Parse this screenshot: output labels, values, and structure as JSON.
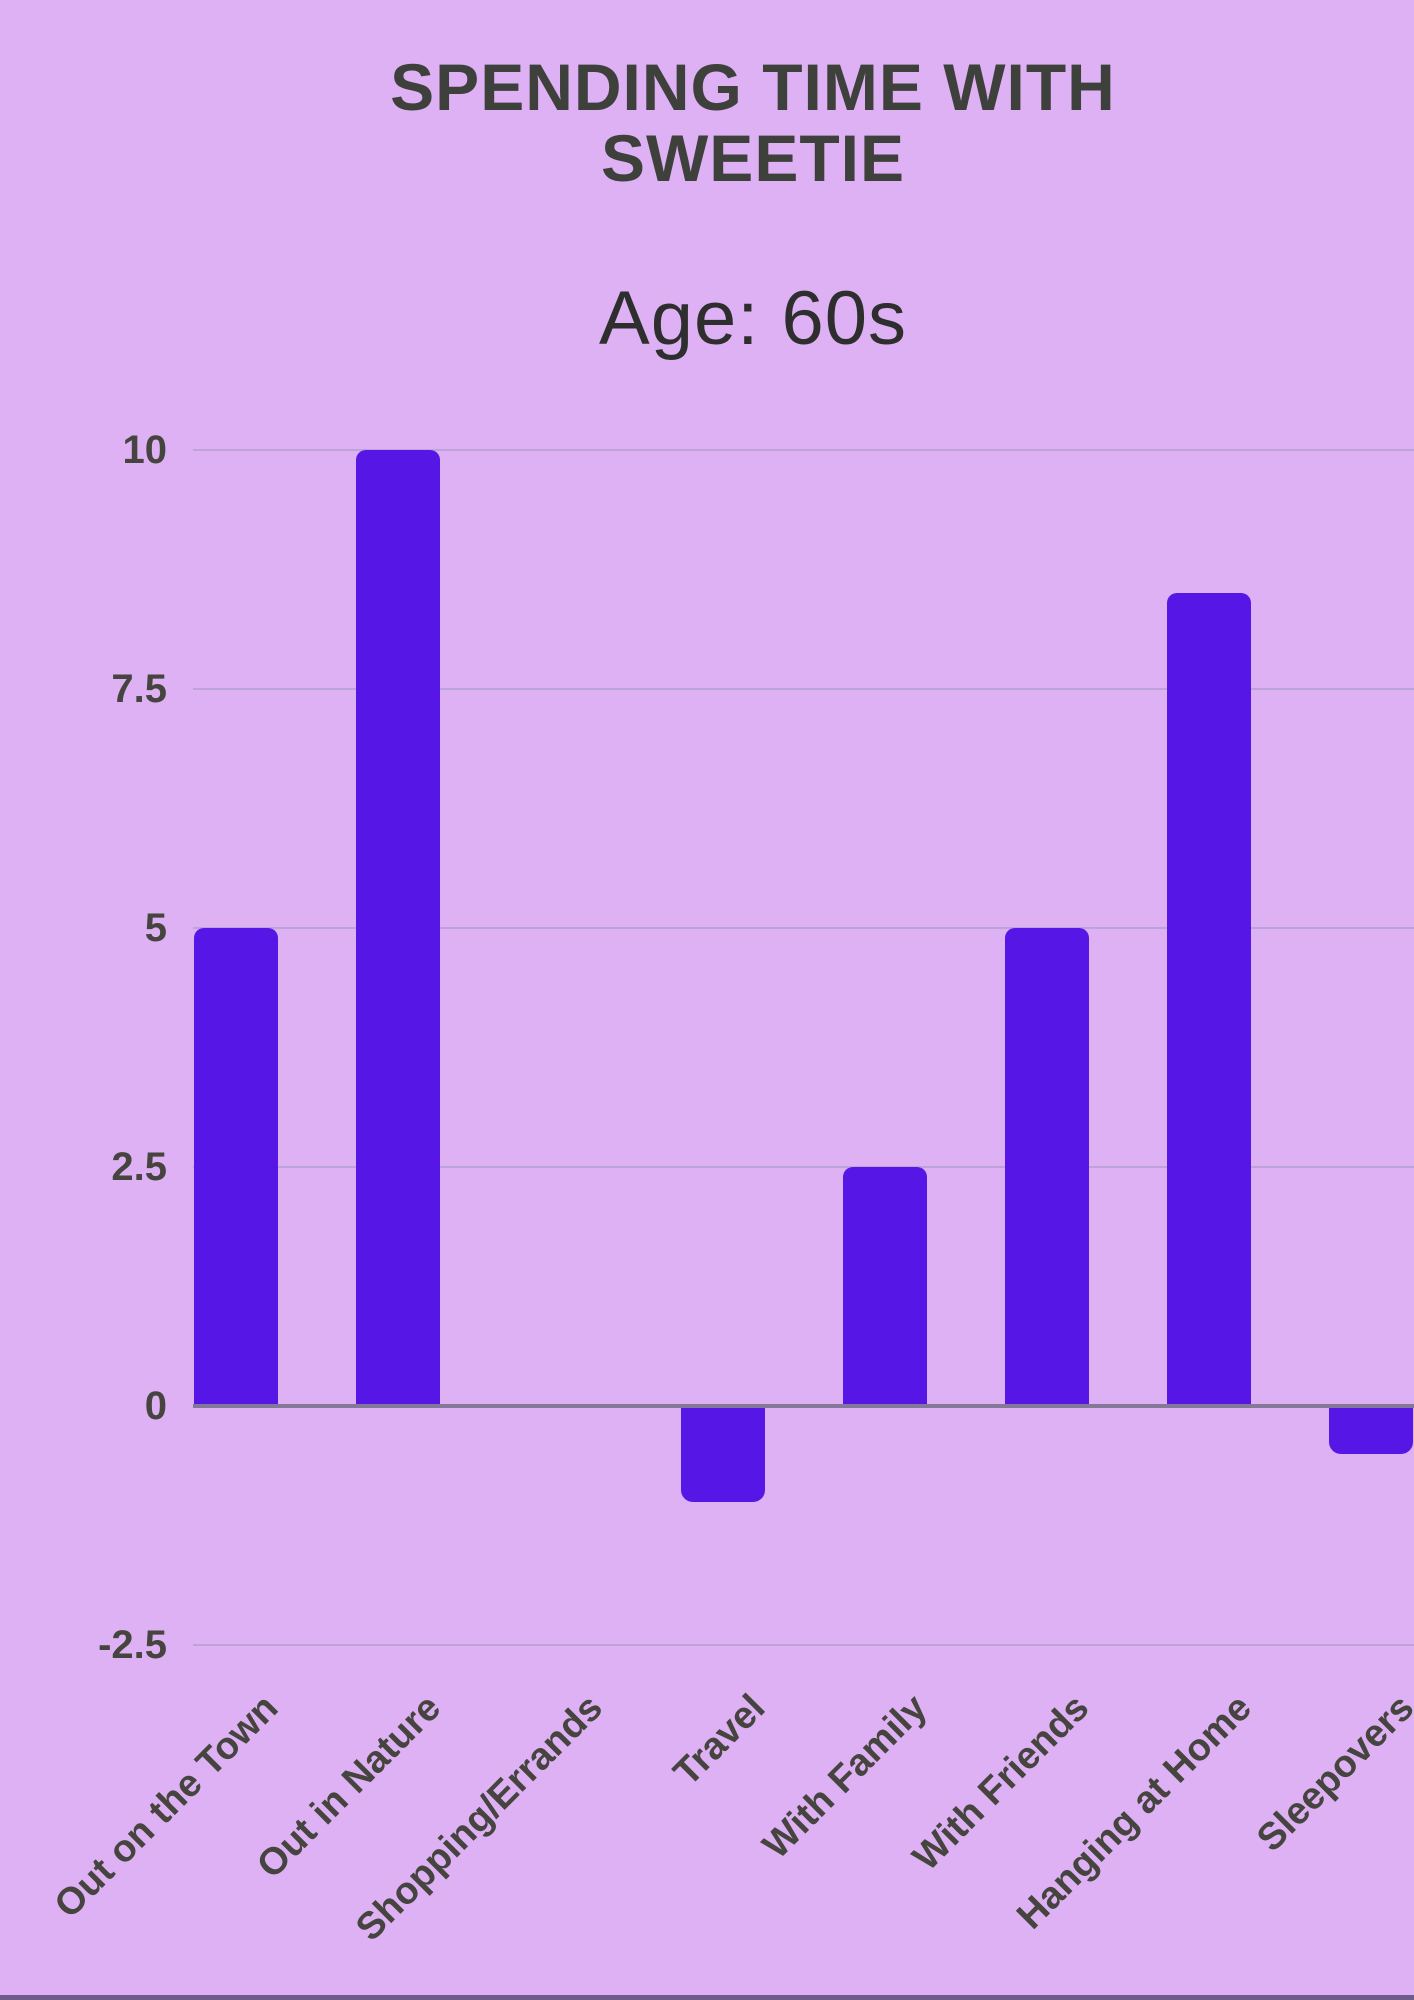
{
  "chart_data": {
    "type": "bar",
    "title": "SPENDING TIME WITH SWEETIE",
    "subtitle": "Age: 60s",
    "categories": [
      "Out on the Town",
      "Out in Nature",
      "Shopping/Errands",
      "Travel",
      "With Family",
      "With Friends",
      "Hanging at Home",
      "Sleepovers"
    ],
    "values": [
      5,
      10,
      0,
      -1,
      2.5,
      5,
      8.5,
      -0.5
    ],
    "ytick_labels": [
      "10",
      "7.5",
      "5",
      "2.5",
      "0",
      "-2.5"
    ],
    "ytick_values": [
      10,
      7.5,
      5,
      2.5,
      0,
      -2.5
    ],
    "ylim": [
      -2.5,
      10
    ],
    "grid": true,
    "legend": false,
    "xlabel": "",
    "ylabel": "",
    "bar_color": "#5617E6",
    "background_color": "#DDB1F3",
    "gridline_color": "#BCA3D8",
    "axis_line_color": "#83789A",
    "text_color": "#45443E",
    "title_color": "#3E403B",
    "footer_strip_color": "#6F5C8B"
  },
  "display": {
    "title_lines": [
      "SPENDING TIME WITH",
      "SWEETIE"
    ]
  }
}
